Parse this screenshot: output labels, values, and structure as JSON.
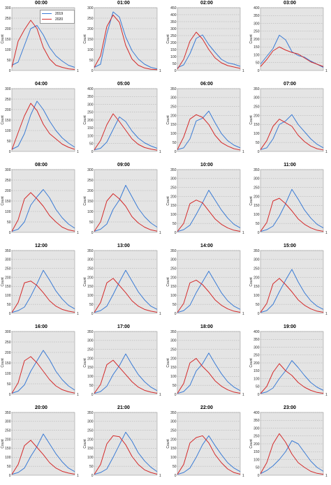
{
  "chart_data": {
    "type": "line",
    "panel_count": 24,
    "ylabel": "Count",
    "x_tick_end": "1",
    "legend": [
      {
        "name": "2019",
        "color": "#3a7bd5"
      },
      {
        "name": "2020",
        "color": "#d42a2a"
      }
    ],
    "panels": [
      {
        "title": "00:00",
        "ylim": [
          0,
          300
        ],
        "yticks": [
          0,
          50,
          100,
          150,
          200,
          250,
          300
        ],
        "s2019": [
          25,
          40,
          120,
          200,
          215,
          170,
          110,
          70,
          45,
          25,
          15
        ],
        "s2020": [
          15,
          140,
          195,
          240,
          200,
          110,
          55,
          25,
          15,
          8,
          5
        ]
      },
      {
        "title": "01:00",
        "ylim": [
          0,
          300
        ],
        "yticks": [
          0,
          50,
          100,
          150,
          200,
          250,
          300
        ],
        "s2019": [
          15,
          30,
          175,
          280,
          255,
          160,
          95,
          55,
          30,
          15,
          8
        ],
        "s2020": [
          15,
          70,
          210,
          265,
          230,
          120,
          55,
          25,
          12,
          6,
          4
        ]
      },
      {
        "title": "02:00",
        "ylim": [
          0,
          450
        ],
        "yticks": [
          0,
          50,
          100,
          150,
          200,
          250,
          300,
          350,
          400,
          450
        ],
        "s2019": [
          20,
          40,
          120,
          230,
          255,
          185,
          130,
          80,
          55,
          45,
          30
        ],
        "s2020": [
          10,
          80,
          210,
          275,
          225,
          150,
          90,
          55,
          35,
          25,
          15
        ]
      },
      {
        "title": "03:00",
        "ylim": [
          0,
          400
        ],
        "yticks": [
          0,
          50,
          100,
          150,
          200,
          250,
          300,
          350,
          400
        ],
        "s2019": [
          40,
          90,
          140,
          225,
          195,
          120,
          95,
          85,
          60,
          40,
          20
        ],
        "s2020": [
          25,
          70,
          125,
          150,
          130,
          115,
          105,
          80,
          55,
          40,
          25
        ]
      },
      {
        "title": "04:00",
        "ylim": [
          0,
          300
        ],
        "yticks": [
          0,
          50,
          100,
          150,
          200,
          250,
          300
        ],
        "s2019": [
          10,
          25,
          85,
          175,
          240,
          200,
          145,
          100,
          65,
          40,
          20
        ],
        "s2020": [
          8,
          90,
          170,
          230,
          195,
          130,
          85,
          60,
          35,
          20,
          10
        ]
      },
      {
        "title": "05:00",
        "ylim": [
          0,
          400
        ],
        "yticks": [
          0,
          50,
          100,
          150,
          200,
          250,
          300,
          350,
          400
        ],
        "s2019": [
          10,
          20,
          60,
          140,
          220,
          190,
          130,
          85,
          55,
          35,
          20
        ],
        "s2020": [
          10,
          70,
          170,
          240,
          190,
          135,
          80,
          45,
          25,
          15,
          8
        ]
      },
      {
        "title": "06:00",
        "ylim": [
          0,
          350
        ],
        "yticks": [
          0,
          50,
          100,
          150,
          200,
          250,
          300,
          350
        ],
        "s2019": [
          10,
          20,
          70,
          170,
          185,
          225,
          160,
          100,
          60,
          35,
          20
        ],
        "s2020": [
          10,
          80,
          180,
          205,
          190,
          150,
          90,
          50,
          30,
          15,
          8
        ]
      },
      {
        "title": "07:00",
        "ylim": [
          0,
          350
        ],
        "yticks": [
          0,
          50,
          100,
          150,
          200,
          250,
          300,
          350
        ],
        "s2019": [
          10,
          20,
          70,
          150,
          170,
          205,
          150,
          110,
          70,
          40,
          20
        ],
        "s2020": [
          10,
          60,
          140,
          180,
          160,
          140,
          90,
          55,
          30,
          15,
          8
        ]
      },
      {
        "title": "08:00",
        "ylim": [
          0,
          300
        ],
        "yticks": [
          0,
          50,
          100,
          150,
          200,
          250,
          300
        ],
        "s2019": [
          5,
          15,
          50,
          130,
          170,
          205,
          165,
          110,
          70,
          40,
          20
        ],
        "s2020": [
          5,
          60,
          160,
          190,
          160,
          125,
          80,
          50,
          25,
          12,
          6
        ]
      },
      {
        "title": "09:00",
        "ylim": [
          0,
          300
        ],
        "yticks": [
          0,
          50,
          100,
          150,
          200,
          250,
          300
        ],
        "s2019": [
          5,
          15,
          40,
          110,
          155,
          225,
          170,
          115,
          75,
          45,
          25
        ],
        "s2020": [
          5,
          50,
          150,
          185,
          160,
          125,
          75,
          45,
          25,
          12,
          6
        ]
      },
      {
        "title": "10:00",
        "ylim": [
          0,
          350
        ],
        "yticks": [
          0,
          50,
          100,
          150,
          200,
          250,
          300,
          350
        ],
        "s2019": [
          5,
          15,
          40,
          100,
          165,
          235,
          180,
          125,
          80,
          45,
          25
        ],
        "s2020": [
          5,
          50,
          160,
          180,
          165,
          120,
          75,
          45,
          25,
          12,
          6
        ]
      },
      {
        "title": "11:00",
        "ylim": [
          0,
          350
        ],
        "yticks": [
          0,
          50,
          100,
          150,
          200,
          250,
          300,
          350
        ],
        "s2019": [
          5,
          15,
          35,
          90,
          160,
          240,
          185,
          125,
          80,
          45,
          25
        ],
        "s2020": [
          5,
          55,
          175,
          190,
          160,
          120,
          75,
          45,
          25,
          12,
          6
        ]
      },
      {
        "title": "12:00",
        "ylim": [
          0,
          350
        ],
        "yticks": [
          0,
          50,
          100,
          150,
          200,
          250,
          300,
          350
        ],
        "s2019": [
          5,
          15,
          35,
          95,
          165,
          240,
          185,
          125,
          80,
          45,
          25
        ],
        "s2020": [
          5,
          60,
          170,
          180,
          155,
          115,
          70,
          40,
          22,
          12,
          6
        ]
      },
      {
        "title": "13:00",
        "ylim": [
          0,
          350
        ],
        "yticks": [
          0,
          50,
          100,
          150,
          200,
          250,
          300,
          350
        ],
        "s2019": [
          5,
          15,
          40,
          105,
          175,
          240,
          180,
          120,
          75,
          40,
          22
        ],
        "s2020": [
          5,
          60,
          170,
          195,
          155,
          115,
          70,
          40,
          22,
          12,
          6
        ]
      },
      {
        "title": "14:00",
        "ylim": [
          0,
          350
        ],
        "yticks": [
          0,
          50,
          100,
          150,
          200,
          250,
          300,
          350
        ],
        "s2019": [
          5,
          15,
          45,
          115,
          175,
          235,
          175,
          115,
          70,
          40,
          22
        ],
        "s2020": [
          5,
          55,
          170,
          185,
          160,
          120,
          75,
          45,
          25,
          12,
          6
        ]
      },
      {
        "title": "15:00",
        "ylim": [
          0,
          350
        ],
        "yticks": [
          0,
          50,
          100,
          150,
          200,
          250,
          300,
          350
        ],
        "s2019": [
          5,
          15,
          50,
          120,
          185,
          245,
          175,
          115,
          70,
          40,
          22
        ],
        "s2020": [
          5,
          55,
          165,
          195,
          160,
          120,
          75,
          45,
          25,
          12,
          6
        ]
      },
      {
        "title": "16:00",
        "ylim": [
          0,
          300
        ],
        "yticks": [
          0,
          50,
          100,
          150,
          200,
          250,
          300
        ],
        "s2019": [
          5,
          15,
          45,
          110,
          160,
          210,
          165,
          110,
          70,
          40,
          20
        ],
        "s2020": [
          5,
          55,
          160,
          180,
          150,
          110,
          70,
          40,
          22,
          12,
          6
        ]
      },
      {
        "title": "17:00",
        "ylim": [
          0,
          350
        ],
        "yticks": [
          0,
          50,
          100,
          150,
          200,
          250,
          300,
          350
        ],
        "s2019": [
          5,
          15,
          45,
          110,
          160,
          225,
          165,
          110,
          70,
          40,
          20
        ],
        "s2020": [
          5,
          55,
          165,
          190,
          150,
          110,
          70,
          40,
          22,
          12,
          6
        ]
      },
      {
        "title": "18:00",
        "ylim": [
          0,
          350
        ],
        "yticks": [
          0,
          50,
          100,
          150,
          200,
          250,
          300,
          350
        ],
        "s2019": [
          5,
          15,
          50,
          130,
          170,
          230,
          170,
          115,
          70,
          40,
          20
        ],
        "s2020": [
          5,
          60,
          175,
          200,
          155,
          120,
          75,
          45,
          25,
          12,
          6
        ]
      },
      {
        "title": "19:00",
        "ylim": [
          0,
          400
        ],
        "yticks": [
          0,
          50,
          100,
          150,
          200,
          250,
          300,
          350,
          400
        ],
        "s2019": [
          5,
          15,
          40,
          100,
          150,
          215,
          170,
          120,
          75,
          45,
          25
        ],
        "s2020": [
          5,
          50,
          140,
          195,
          150,
          120,
          75,
          45,
          25,
          12,
          6
        ]
      },
      {
        "title": "20:00",
        "ylim": [
          0,
          350
        ],
        "yticks": [
          0,
          50,
          100,
          150,
          200,
          250,
          300,
          350
        ],
        "s2019": [
          5,
          15,
          40,
          105,
          160,
          230,
          175,
          120,
          75,
          40,
          20
        ],
        "s2020": [
          5,
          60,
          165,
          195,
          155,
          115,
          70,
          40,
          22,
          12,
          6
        ]
      },
      {
        "title": "21:00",
        "ylim": [
          0,
          350
        ],
        "yticks": [
          0,
          50,
          100,
          150,
          200,
          250,
          300,
          350
        ],
        "s2019": [
          5,
          15,
          35,
          100,
          170,
          240,
          190,
          125,
          80,
          45,
          20
        ],
        "s2020": [
          5,
          60,
          175,
          220,
          215,
          170,
          105,
          60,
          30,
          15,
          6
        ]
      },
      {
        "title": "22:00",
        "ylim": [
          0,
          350
        ],
        "yticks": [
          0,
          50,
          100,
          150,
          200,
          250,
          300,
          350
        ],
        "s2019": [
          5,
          15,
          40,
          100,
          170,
          220,
          165,
          115,
          70,
          40,
          20
        ],
        "s2020": [
          5,
          60,
          180,
          210,
          220,
          180,
          115,
          70,
          35,
          15,
          6
        ]
      },
      {
        "title": "23:00",
        "ylim": [
          0,
          400
        ],
        "yticks": [
          0,
          50,
          100,
          150,
          200,
          250,
          300,
          350,
          400
        ],
        "s2019": [
          10,
          30,
          60,
          100,
          150,
          220,
          200,
          145,
          90,
          50,
          25
        ],
        "s2020": [
          10,
          80,
          200,
          265,
          210,
          135,
          80,
          50,
          25,
          12,
          6
        ]
      }
    ]
  }
}
